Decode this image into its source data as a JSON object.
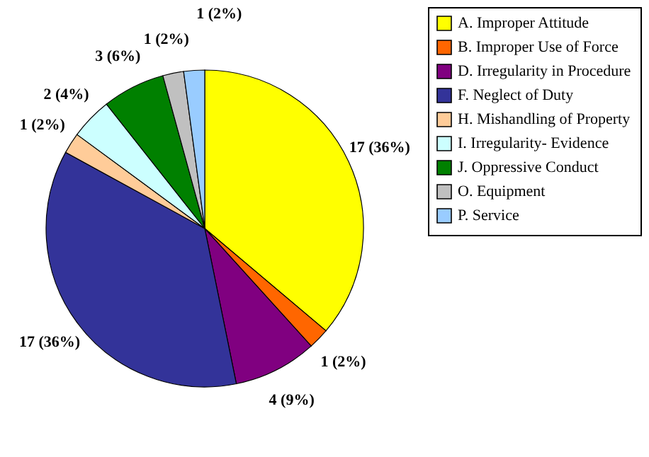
{
  "chart_data": {
    "type": "pie",
    "categories": [
      "A. Improper Attitude",
      "B. Improper Use of Force",
      "D. Irregularity in Procedure",
      "F. Neglect of Duty",
      "H. Mishandling of Property",
      "I. Irregularity- Evidence",
      "J. Oppressive Conduct",
      "O. Equipment",
      "P. Service"
    ],
    "values": [
      17,
      1,
      4,
      17,
      1,
      2,
      3,
      1,
      1
    ],
    "value_labels": [
      "17 (36%)",
      "1 (2%)",
      "4 (9%)",
      "17 (36%)",
      "1 (2%)",
      "2 (4%)",
      "3 (6%)",
      "1 (2%)",
      "1 (2%)"
    ],
    "colors": [
      "#ffff00",
      "#ff6600",
      "#800080",
      "#333399",
      "#ffcc99",
      "#ccffff",
      "#008000",
      "#c0c0c0",
      "#99ccff"
    ],
    "legend": "right"
  }
}
